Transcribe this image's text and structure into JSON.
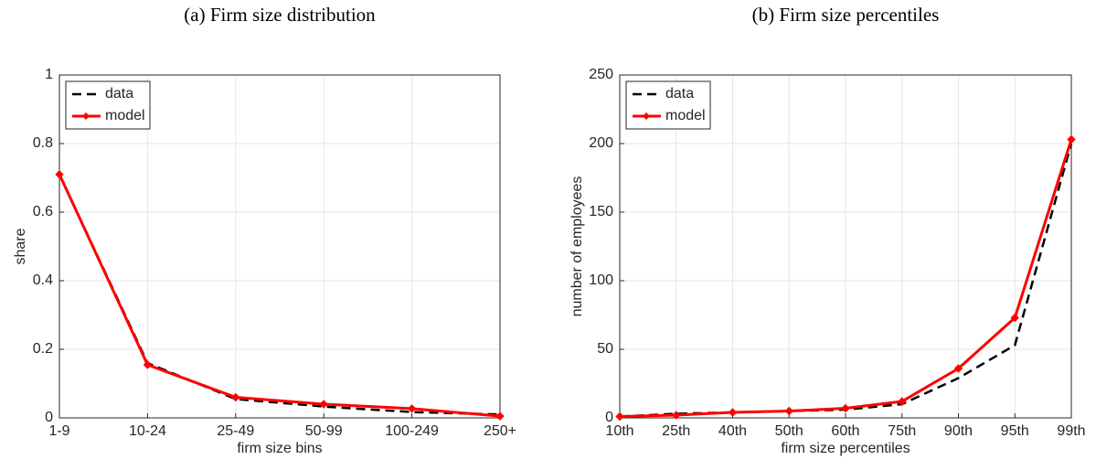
{
  "chart_data": [
    {
      "type": "line",
      "title": "(a) Firm size distribution",
      "xlabel": "firm size bins",
      "ylabel": "share",
      "categories": [
        "1-9",
        "10-24",
        "25-49",
        "50-99",
        "100-249",
        "250+"
      ],
      "series": [
        {
          "name": "data",
          "color": "#000000",
          "style": "dashed",
          "values": [
            0.71,
            0.16,
            0.055,
            0.033,
            0.017,
            0.01
          ]
        },
        {
          "name": "model",
          "color": "#ff0000",
          "style": "solid",
          "marker": "diamond",
          "values": [
            0.71,
            0.155,
            0.06,
            0.04,
            0.027,
            0.005
          ]
        }
      ],
      "ylim": [
        0,
        1
      ],
      "yticks": [
        0,
        0.2,
        0.4,
        0.6,
        0.8,
        1
      ],
      "grid": true,
      "legend": "upper left"
    },
    {
      "type": "line",
      "title": "(b) Firm size percentiles",
      "xlabel": "firm size percentiles",
      "ylabel": "number of employees",
      "categories": [
        "10th",
        "25th",
        "40th",
        "50th",
        "60th",
        "75th",
        "90th",
        "95th",
        "99th"
      ],
      "series": [
        {
          "name": "data",
          "color": "#000000",
          "style": "dashed",
          "values": [
            1,
            3,
            4,
            5,
            6,
            10,
            29,
            53,
            200
          ]
        },
        {
          "name": "model",
          "color": "#ff0000",
          "style": "solid",
          "marker": "diamond",
          "values": [
            1,
            2,
            4,
            5,
            7,
            12,
            36,
            73,
            203
          ]
        }
      ],
      "ylim": [
        0,
        250
      ],
      "yticks": [
        0,
        50,
        100,
        150,
        200,
        250
      ],
      "grid": true,
      "legend": "upper left"
    }
  ]
}
